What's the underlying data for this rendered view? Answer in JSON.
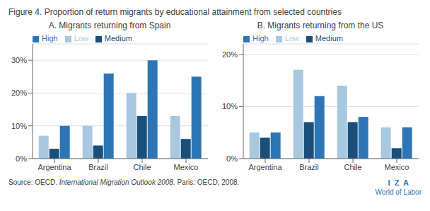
{
  "title": "Figure 4. Proportion of return migrants by educational attainment from selected countries",
  "annotations": [
    "Source: ",
    "OECD. ",
    "International Migration Outlook 2008.",
    " Paris: OECD, 2008.",
    "I  Z  A",
    "World of Labor"
  ],
  "chart_data": [
    {
      "type": "bar",
      "subtitle": "A. Migrants returning from Spain",
      "categories": [
        "Argentina",
        "Brazil",
        "Chile",
        "Mexico"
      ],
      "series": [
        {
          "name": "Low",
          "color": "#a8c8e0",
          "values": [
            7,
            10,
            20,
            13
          ]
        },
        {
          "name": "Medium",
          "color": "#1a4f7a",
          "values": [
            3,
            4,
            13,
            6
          ]
        },
        {
          "name": "High",
          "color": "#2e75b6",
          "values": [
            10,
            26,
            30,
            25
          ]
        }
      ],
      "ylim": [
        0,
        35
      ],
      "yticks": [
        {
          "value": 0,
          "label": "0%"
        },
        {
          "value": 10,
          "label": "10%"
        },
        {
          "value": 20,
          "label": "20%"
        },
        {
          "value": 30,
          "label": "30%"
        }
      ],
      "grid": true,
      "legend": "upper left"
    },
    {
      "type": "bar",
      "subtitle": "B. Migrants returning from the US",
      "categories": [
        "Argentina",
        "Brazil",
        "Chile",
        "Mexico"
      ],
      "series": [
        {
          "name": "Low",
          "color": "#a8c8e0",
          "values": [
            5,
            17,
            14,
            6
          ]
        },
        {
          "name": "Medium",
          "color": "#1a4f7a",
          "values": [
            4,
            7,
            7,
            2
          ]
        },
        {
          "name": "High",
          "color": "#2e75b6",
          "values": [
            5,
            12,
            8,
            6
          ]
        }
      ],
      "ylim": [
        0,
        22
      ],
      "yticks": [
        {
          "value": 0,
          "label": "0%"
        },
        {
          "value": 10,
          "label": "10%"
        },
        {
          "value": 20,
          "label": "20%"
        }
      ],
      "grid": true,
      "legend": "upper left"
    }
  ]
}
